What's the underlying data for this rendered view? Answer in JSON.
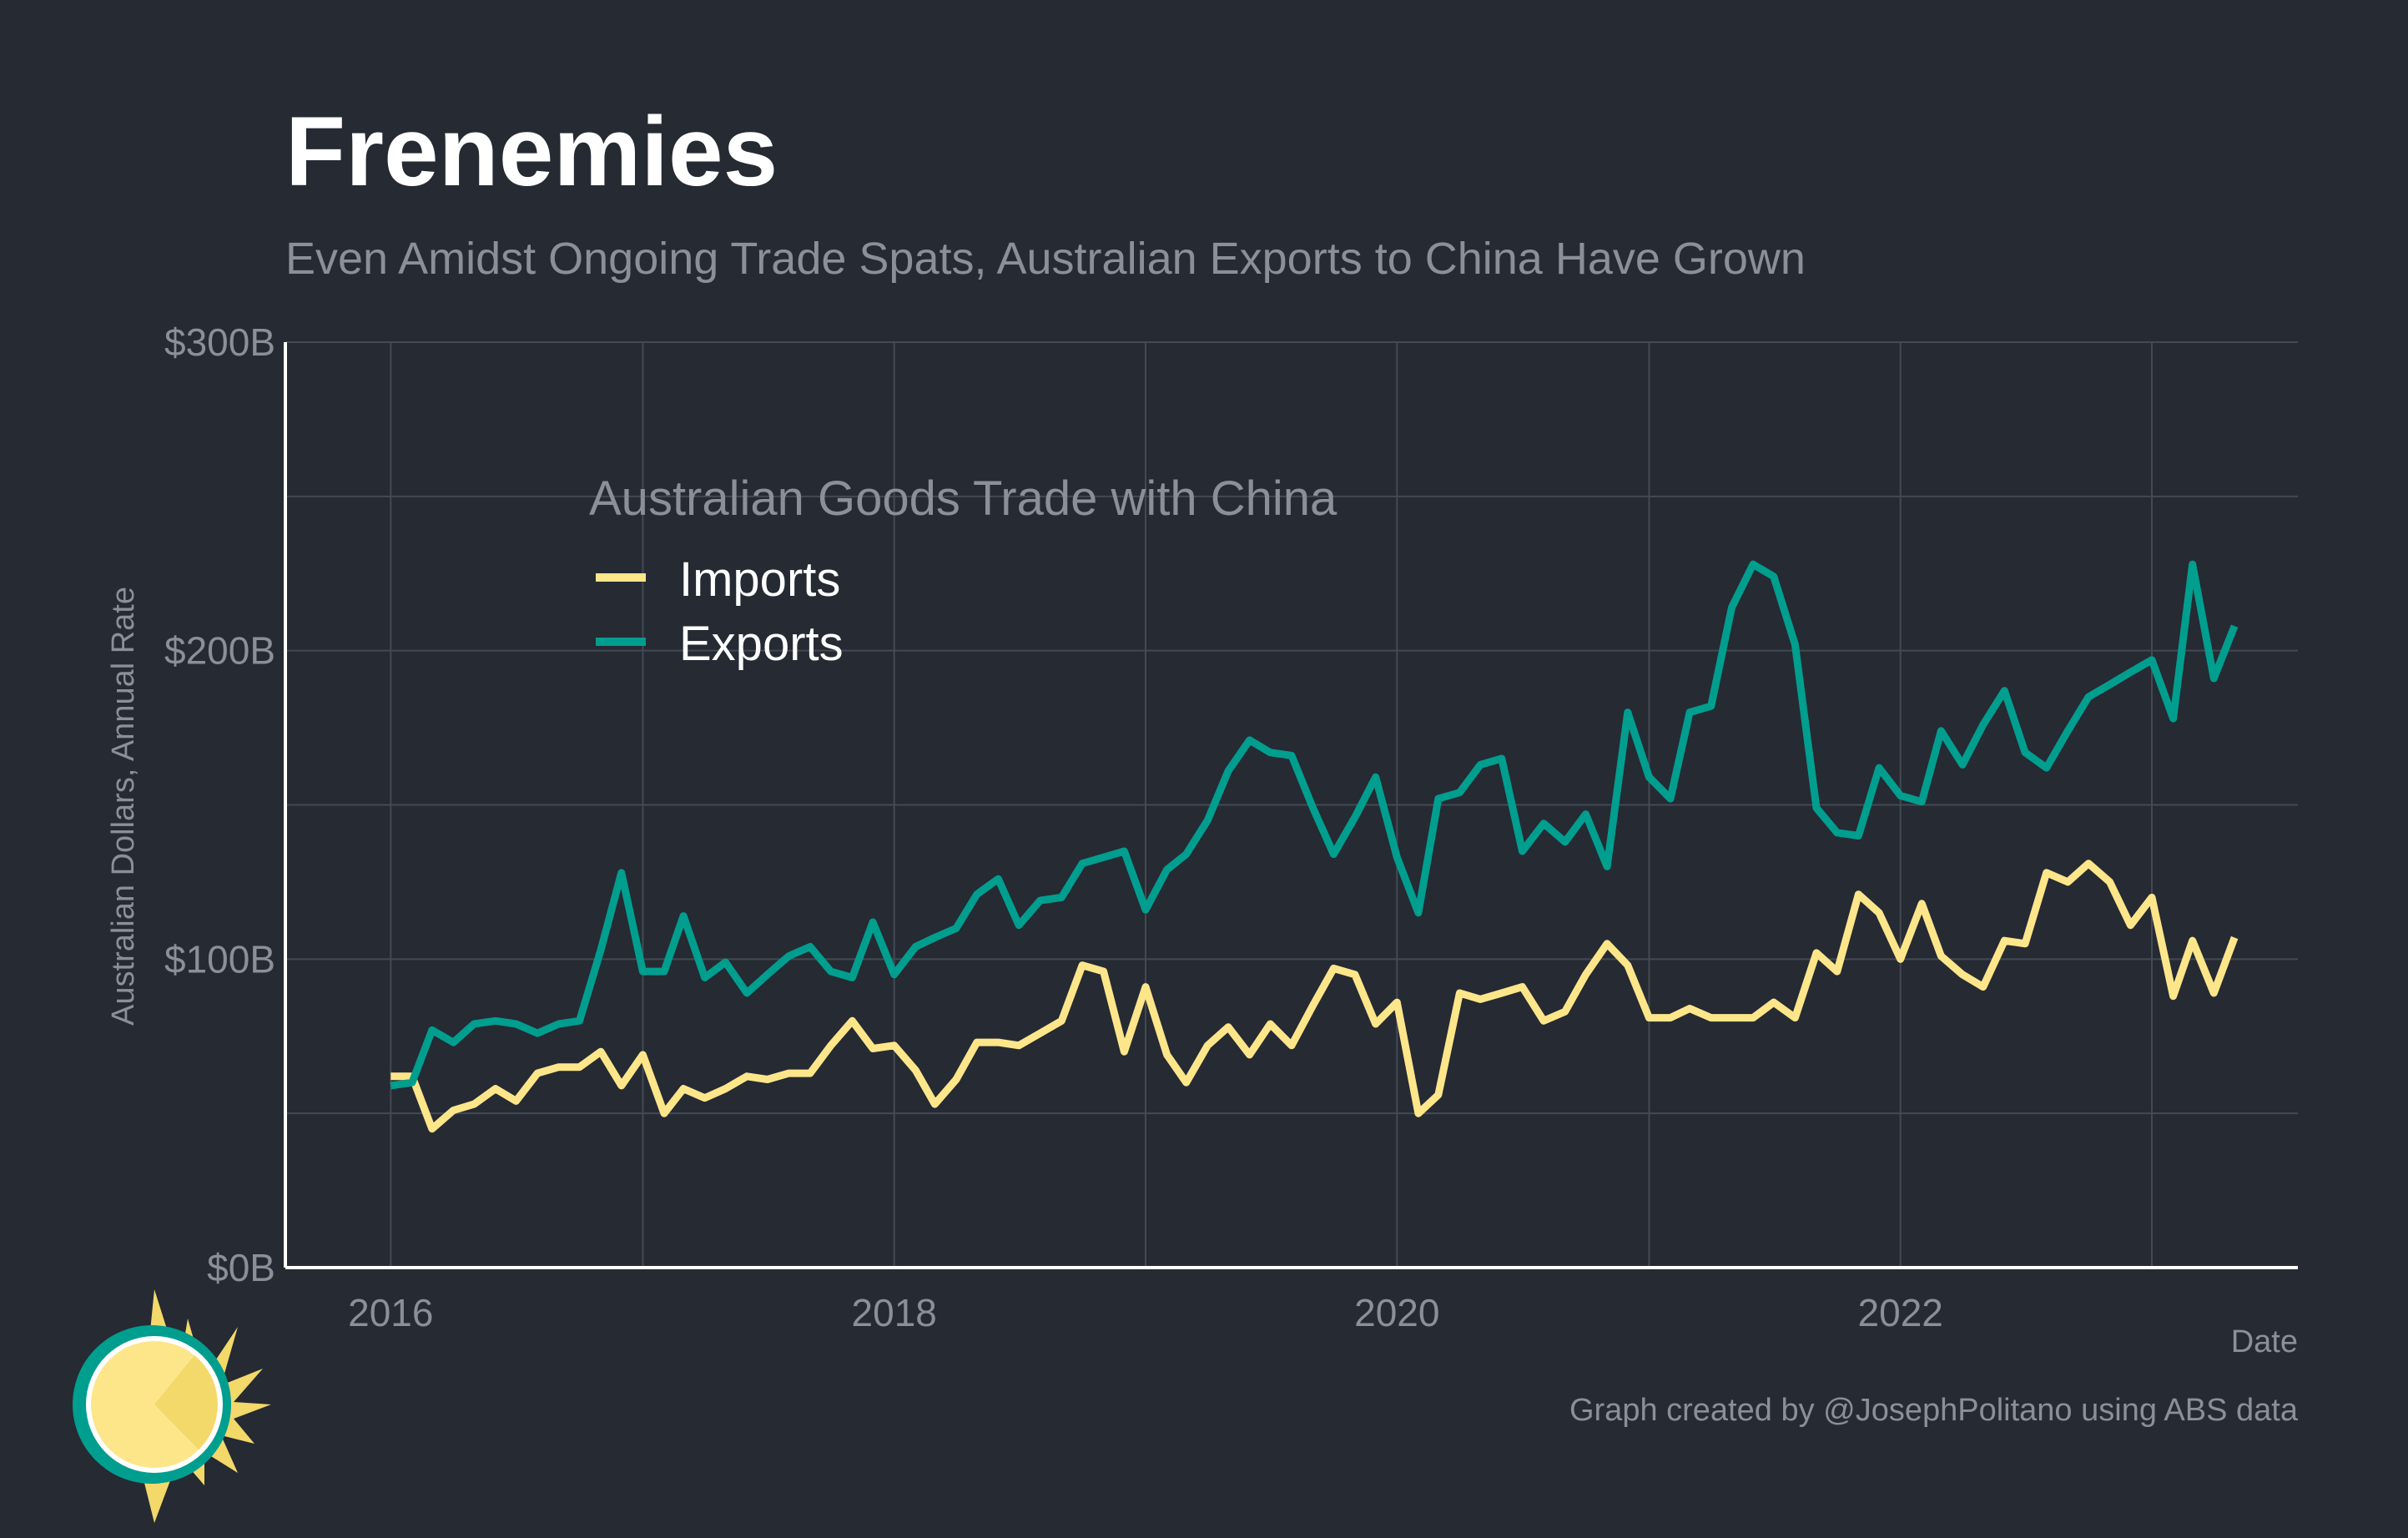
{
  "title": "Frenemies",
  "subtitle": "Even Amidst Ongoing Trade Spats, Australian Exports to China Have Grown",
  "caption": "Graph created by @JosephPolitano using ABS data",
  "logo_icon": "sun-logo-icon",
  "chart_data": {
    "type": "line",
    "ylabel": "Australian Dollars, Annual Rate",
    "xlabel": "Date",
    "ylim": [
      0,
      300
    ],
    "xlim": [
      "2015-08-01",
      "2023-08-01"
    ],
    "y_ticks": [
      0,
      100,
      200,
      300
    ],
    "y_tick_labels": [
      "$0B",
      "$100B",
      "$200B",
      "$300B"
    ],
    "x_ticks": [
      "2016-01-01",
      "2018-01-01",
      "2020-01-01",
      "2022-01-01"
    ],
    "x_tick_labels": [
      "2016",
      "2018",
      "2020",
      "2022"
    ],
    "grid": true,
    "legend": {
      "title": "Australian Goods Trade with China",
      "position": "top-left"
    },
    "x": [
      "2016-01",
      "2016-02",
      "2016-03",
      "2016-04",
      "2016-05",
      "2016-06",
      "2016-07",
      "2016-08",
      "2016-09",
      "2016-10",
      "2016-11",
      "2016-12",
      "2017-01",
      "2017-02",
      "2017-03",
      "2017-04",
      "2017-05",
      "2017-06",
      "2017-07",
      "2017-08",
      "2017-09",
      "2017-10",
      "2017-11",
      "2017-12",
      "2018-01",
      "2018-02",
      "2018-03",
      "2018-04",
      "2018-05",
      "2018-06",
      "2018-07",
      "2018-08",
      "2018-09",
      "2018-10",
      "2018-11",
      "2018-12",
      "2019-01",
      "2019-02",
      "2019-03",
      "2019-04",
      "2019-05",
      "2019-06",
      "2019-07",
      "2019-08",
      "2019-09",
      "2019-10",
      "2019-11",
      "2019-12",
      "2020-01",
      "2020-02",
      "2020-03",
      "2020-04",
      "2020-05",
      "2020-06",
      "2020-07",
      "2020-08",
      "2020-09",
      "2020-10",
      "2020-11",
      "2020-12",
      "2021-01",
      "2021-02",
      "2021-03",
      "2021-04",
      "2021-05",
      "2021-06",
      "2021-07",
      "2021-08",
      "2021-09",
      "2021-10",
      "2021-11",
      "2021-12",
      "2022-01",
      "2022-02",
      "2022-03",
      "2022-04",
      "2022-05",
      "2022-06",
      "2022-07",
      "2022-08",
      "2022-09",
      "2022-10",
      "2022-11",
      "2022-12",
      "2023-01",
      "2023-02",
      "2023-03",
      "2023-04",
      "2023-05"
    ],
    "series": [
      {
        "name": "Imports",
        "color": "#fde68a",
        "values": [
          62,
          62,
          45,
          51,
          53,
          58,
          54,
          63,
          65,
          65,
          70,
          59,
          69,
          50,
          58,
          55,
          58,
          62,
          61,
          63,
          63,
          72,
          80,
          71,
          72,
          64,
          53,
          61,
          73,
          73,
          72,
          76,
          80,
          98,
          96,
          70,
          91,
          69,
          60,
          72,
          78,
          69,
          79,
          72,
          85,
          97,
          95,
          79,
          86,
          50,
          56,
          89,
          87,
          89,
          91,
          80,
          83,
          95,
          105,
          98,
          81,
          81,
          84,
          81,
          81,
          81,
          86,
          81,
          102,
          96,
          121,
          115,
          100,
          118,
          101,
          95,
          91,
          106,
          105,
          128,
          125,
          131,
          125,
          111,
          120,
          88,
          106,
          89,
          107
        ]
      },
      {
        "name": "Exports",
        "color": "#009e8e",
        "values": [
          59,
          60,
          77,
          73,
          79,
          80,
          79,
          76,
          79,
          80,
          103,
          128,
          96,
          96,
          114,
          94,
          99,
          89,
          95,
          101,
          104,
          96,
          94,
          112,
          95,
          104,
          107,
          110,
          121,
          126,
          111,
          119,
          120,
          131,
          133,
          135,
          116,
          129,
          134,
          145,
          161,
          171,
          167,
          166,
          149,
          134,
          146,
          159,
          133,
          115,
          152,
          154,
          163,
          165,
          135,
          144,
          138,
          147,
          130,
          180,
          159,
          152,
          180,
          182,
          214,
          228,
          224,
          202,
          149,
          141,
          140,
          162,
          153,
          151,
          174,
          163,
          176,
          187,
          167,
          162,
          174,
          185,
          189,
          193,
          197,
          178,
          228,
          191,
          208
        ]
      }
    ]
  }
}
